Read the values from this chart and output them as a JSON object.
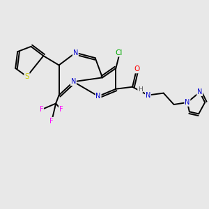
{
  "bg_color": "#e8e8e8",
  "bond_color": "#000000",
  "atom_colors": {
    "N": "#0000cc",
    "O": "#ff0000",
    "S": "#cccc00",
    "F": "#ff00ff",
    "Cl": "#00aa00",
    "C": "#000000",
    "H": "#555555"
  },
  "lw": 1.4,
  "fs": 7.0,
  "figsize": [
    3.0,
    3.0
  ],
  "dpi": 100,
  "xlim": [
    0,
    10
  ],
  "ylim": [
    0,
    10
  ]
}
